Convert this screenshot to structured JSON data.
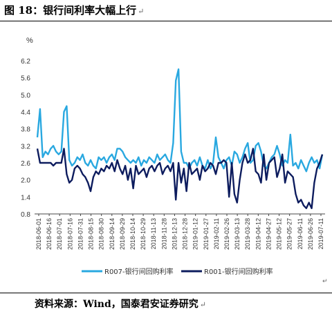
{
  "title": "图 18：银行间利率大幅上行",
  "paragraph_mark": "↵",
  "source": "资料来源：Wind，国泰君安证券研究",
  "colors": {
    "r007": "#29a8e0",
    "r001": "#0d1c5e"
  },
  "chart_data": {
    "type": "line",
    "ylabel": "%",
    "ylim": [
      0.8,
      6.2
    ],
    "yticks": [
      "6.2",
      "5.6",
      "5.0",
      "4.4",
      "3.8",
      "3.2",
      "2.6",
      "2.0",
      "1.4",
      "0.8"
    ],
    "xticks": [
      "2018-06-01",
      "2018-06-16",
      "2018-07-01",
      "2018-07-16",
      "2018-07-31",
      "2018-08-15",
      "2018-08-30",
      "2018-09-14",
      "2018-09-29",
      "2018-10-14",
      "2018-10-29",
      "2018-11-13",
      "2018-11-28",
      "2018-12-13",
      "2018-12-28",
      "2019-01-12",
      "2019-01-27",
      "2019-02-11",
      "2019-02-26",
      "2019-03-13",
      "2019-03-28",
      "2019-04-12",
      "2019-04-27",
      "2019-05-12",
      "2019-05-27",
      "2019-06-11",
      "2019-06-26",
      "2019-07-11"
    ],
    "series": [
      {
        "name": "R007-银行间回购利率",
        "key": "r007",
        "values": [
          3.5,
          4.5,
          2.8,
          3.0,
          2.9,
          3.1,
          3.2,
          3.0,
          2.9,
          3.0,
          4.4,
          4.6,
          2.7,
          2.5,
          2.6,
          2.8,
          2.7,
          2.9,
          2.6,
          2.5,
          2.7,
          2.5,
          2.4,
          2.8,
          2.7,
          2.8,
          2.6,
          2.8,
          2.9,
          2.7,
          3.1,
          3.1,
          3.0,
          2.8,
          2.7,
          2.6,
          2.7,
          2.6,
          2.8,
          2.5,
          2.7,
          2.6,
          2.8,
          2.7,
          2.6,
          2.9,
          2.7,
          2.8,
          2.9,
          2.7,
          2.6,
          3.3,
          5.5,
          5.9,
          3.0,
          2.6,
          2.6,
          2.4,
          2.6,
          2.7,
          2.5,
          2.8,
          2.5,
          2.4,
          2.7,
          2.4,
          2.6,
          3.5,
          2.8,
          2.6,
          2.4,
          2.7,
          2.8,
          2.5,
          3.0,
          2.9,
          2.6,
          2.8,
          3.1,
          3.3,
          2.6,
          2.7,
          3.2,
          3.3,
          3.0,
          2.5,
          2.4,
          2.6,
          2.8,
          2.9,
          3.2,
          2.9,
          2.5,
          2.7,
          2.6,
          3.6,
          2.5,
          2.6,
          2.4,
          2.7,
          2.5,
          2.3,
          2.6,
          2.8,
          2.6,
          2.7,
          2.4,
          2.9
        ]
      },
      {
        "name": "R001-银行间回购利率",
        "key": "r001",
        "values": [
          3.1,
          2.6,
          2.6,
          2.6,
          2.6,
          2.6,
          2.5,
          2.6,
          2.6,
          2.6,
          3.1,
          2.2,
          1.9,
          2.0,
          2.4,
          2.5,
          2.4,
          2.2,
          2.1,
          1.9,
          1.6,
          2.1,
          2.3,
          2.2,
          2.4,
          2.3,
          2.5,
          2.4,
          2.6,
          2.3,
          2.7,
          2.4,
          2.2,
          2.5,
          2.0,
          2.4,
          1.7,
          2.5,
          2.2,
          2.3,
          2.4,
          2.1,
          2.4,
          2.5,
          2.3,
          2.5,
          2.6,
          2.2,
          2.4,
          2.5,
          2.3,
          2.6,
          1.3,
          2.6,
          1.9,
          2.4,
          1.6,
          2.6,
          2.2,
          2.3,
          2.4,
          2.0,
          2.5,
          2.3,
          2.4,
          2.6,
          2.5,
          2.2,
          2.6,
          2.6,
          2.7,
          2.6,
          1.4,
          2.6,
          1.5,
          1.2,
          2.0,
          2.6,
          2.9,
          2.6,
          2.7,
          3.1,
          2.3,
          2.2,
          1.9,
          2.9,
          2.0,
          2.6,
          2.7,
          2.8,
          2.1,
          2.4,
          2.9,
          1.9,
          2.3,
          2.2,
          2.1,
          1.5,
          1.2,
          1.3,
          1.1,
          1.0,
          1.2,
          1.0,
          1.9,
          2.4,
          2.6,
          2.9
        ]
      }
    ]
  }
}
